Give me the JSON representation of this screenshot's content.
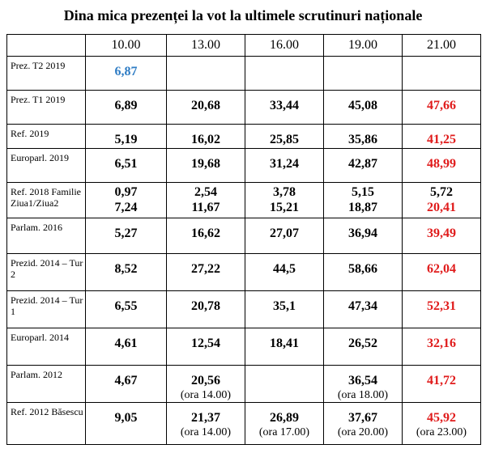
{
  "title": "Dina mica prezenței la vot la ultimele scrutinuri naționale",
  "colors": {
    "highlight_red": "#e01b1b",
    "highlight_blue": "#2e7cc4"
  },
  "hours": [
    "10.00",
    "13.00",
    "16.00",
    "19.00",
    "21.00"
  ],
  "rows": [
    {
      "label": "Prez. T2 2019",
      "values": [
        {
          "v": "6,87",
          "c": "blue"
        },
        {
          "v": ""
        },
        {
          "v": ""
        },
        {
          "v": ""
        },
        {
          "v": ""
        }
      ]
    },
    {
      "label": "Prez. T1 2019",
      "values": [
        {
          "v": "6,89"
        },
        {
          "v": "20,68"
        },
        {
          "v": "33,44"
        },
        {
          "v": "45,08"
        },
        {
          "v": "47,66",
          "c": "red"
        }
      ]
    },
    {
      "label": "Ref. 2019",
      "values": [
        {
          "v": "5,19"
        },
        {
          "v": "16,02"
        },
        {
          "v": "25,85"
        },
        {
          "v": "35,86"
        },
        {
          "v": "41,25",
          "c": "red"
        }
      ]
    },
    {
      "label": "Europarl. 2019",
      "values": [
        {
          "v": "6,51"
        },
        {
          "v": "19,68"
        },
        {
          "v": "31,24"
        },
        {
          "v": "42,87"
        },
        {
          "v": "48,99",
          "c": "red"
        }
      ]
    },
    {
      "label": "Ref. 2018 Familie Ziua1/Ziua2",
      "two": true,
      "values": [
        {
          "v": "0,97",
          "v2": "7,24"
        },
        {
          "v": "2,54",
          "v2": "11,67"
        },
        {
          "v": "3,78",
          "v2": "15,21"
        },
        {
          "v": "5,15",
          "v2": "18,87"
        },
        {
          "v": "5,72",
          "v2": "20,41",
          "c2": "red"
        }
      ]
    },
    {
      "label": "Parlam. 2016",
      "values": [
        {
          "v": "5,27"
        },
        {
          "v": "16,62"
        },
        {
          "v": "27,07"
        },
        {
          "v": "36,94"
        },
        {
          "v": "39,49",
          "c": "red"
        }
      ]
    },
    {
      "label": "Prezid. 2014 – Tur 2",
      "values": [
        {
          "v": "8,52"
        },
        {
          "v": "27,22"
        },
        {
          "v": "44,5"
        },
        {
          "v": "58,66"
        },
        {
          "v": "62,04",
          "c": "red"
        }
      ]
    },
    {
      "label": "Prezid. 2014 – Tur 1",
      "values": [
        {
          "v": "6,55"
        },
        {
          "v": "20,78"
        },
        {
          "v": "35,1"
        },
        {
          "v": "47,34"
        },
        {
          "v": "52,31",
          "c": "red"
        }
      ]
    },
    {
      "label": "Europarl. 2014",
      "values": [
        {
          "v": "4,61"
        },
        {
          "v": "12,54"
        },
        {
          "v": "18,41"
        },
        {
          "v": "26,52"
        },
        {
          "v": "32,16",
          "c": "red"
        }
      ]
    },
    {
      "label": "Parlam. 2012",
      "values": [
        {
          "v": "4,67"
        },
        {
          "v": "20,56",
          "sub": "(ora 14.00)"
        },
        {
          "v": ""
        },
        {
          "v": "36,54",
          "sub": "(ora 18.00)"
        },
        {
          "v": "41,72",
          "c": "red"
        }
      ]
    },
    {
      "label": "Ref. 2012 Băsescu",
      "values": [
        {
          "v": "9,05"
        },
        {
          "v": "21,37",
          "sub": "(ora 14.00)"
        },
        {
          "v": "26,89",
          "sub": "(ora 17.00)"
        },
        {
          "v": "37,67",
          "sub": "(ora 20.00)"
        },
        {
          "v": "45,92",
          "c": "red",
          "sub": "(ora 23.00)"
        }
      ]
    }
  ]
}
